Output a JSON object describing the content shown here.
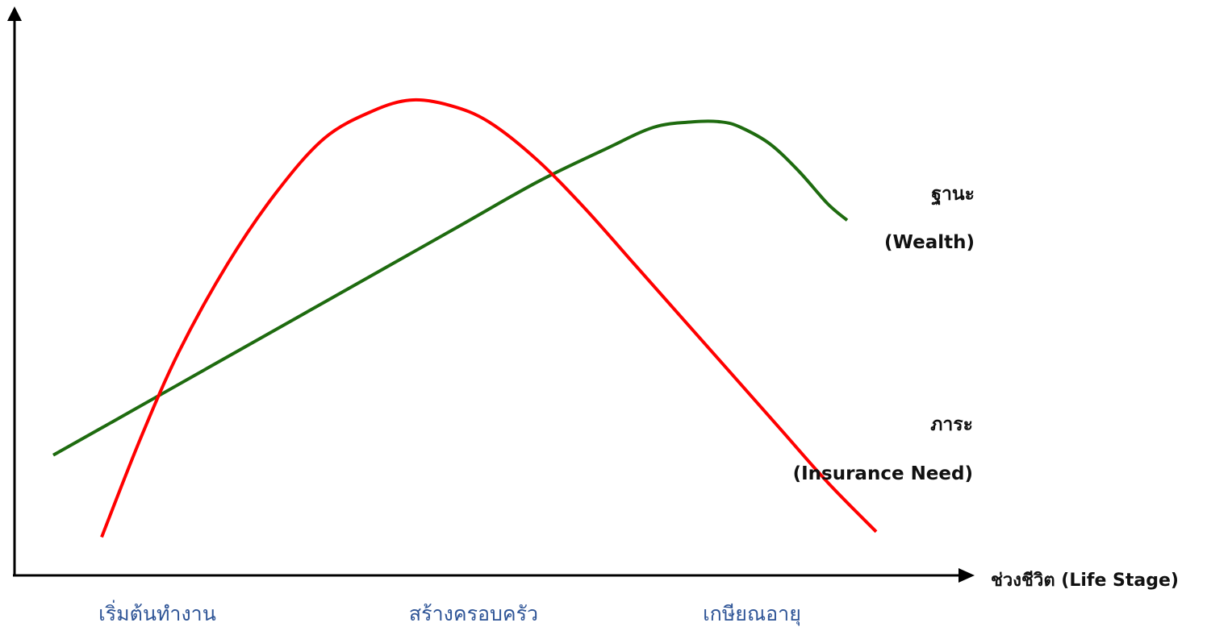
{
  "chart_data": {
    "type": "line",
    "title": "",
    "xlabel": "ช่วงชีวิต (Life Stage)",
    "ylabel": "",
    "categories": [
      "เริ่มต้นทำงาน",
      "สร้างครอบครัว",
      "เกษียณอายุ"
    ],
    "xlim": [
      0,
      100
    ],
    "ylim": [
      0,
      100
    ],
    "grid": false,
    "legend": "inline-right",
    "series": [
      {
        "name": "ฐานะ",
        "name_en": "(Wealth)",
        "color": "#1e6b0f",
        "x": [
          4,
          10,
          19,
          28,
          37,
          46,
          54,
          61,
          66,
          70,
          73,
          75,
          78,
          81,
          84,
          86
        ],
        "y": [
          22,
          28,
          37,
          46,
          55,
          64,
          72,
          78,
          82,
          83,
          83,
          82,
          79,
          74,
          68,
          65
        ]
      },
      {
        "name": "ภาระ",
        "name_en": "(Insurance Need)",
        "color": "#ff0000",
        "x": [
          9,
          13,
          17,
          22,
          27,
          32,
          37,
          41,
          45,
          49,
          54,
          59,
          64,
          69,
          74,
          79,
          84,
          89
        ],
        "y": [
          7,
          25,
          41,
          57,
          70,
          80,
          85,
          87,
          86,
          83,
          76,
          67,
          57,
          47,
          37,
          27,
          17,
          8
        ]
      }
    ]
  }
}
